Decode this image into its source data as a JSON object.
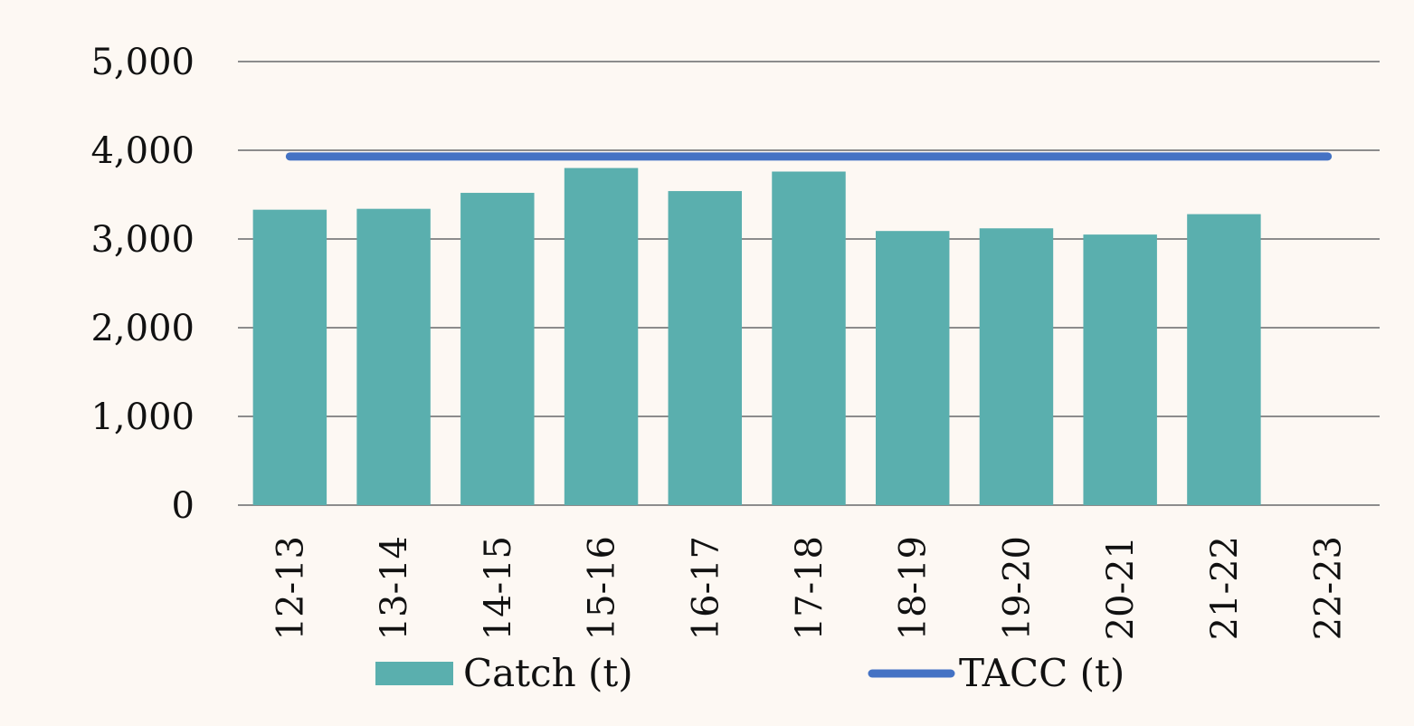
{
  "chart_data": {
    "type": "bar",
    "title": "",
    "xlabel": "",
    "ylabel": "",
    "ylim": [
      0,
      5000
    ],
    "y_ticks": [
      0,
      1000,
      2000,
      3000,
      4000,
      5000
    ],
    "y_tick_labels": [
      "0",
      "1,000",
      "2,000",
      "3,000",
      "4,000",
      "5,000"
    ],
    "categories": [
      "12-13",
      "13-14",
      "14-15",
      "15-16",
      "16-17",
      "17-18",
      "18-19",
      "19-20",
      "20-21",
      "21-22",
      "22-23"
    ],
    "grid": true,
    "legend_position": "bottom",
    "series": [
      {
        "name": "Catch (t)",
        "type": "bar",
        "color": "#5aafae",
        "values": [
          3330,
          3340,
          3520,
          3800,
          3540,
          3760,
          3090,
          3120,
          3050,
          3280,
          null
        ]
      },
      {
        "name": "TACC (t)",
        "type": "line",
        "color": "#4472c4",
        "values": [
          3930,
          3930,
          3930,
          3930,
          3930,
          3930,
          3930,
          3930,
          3930,
          3930,
          3930
        ]
      }
    ]
  }
}
